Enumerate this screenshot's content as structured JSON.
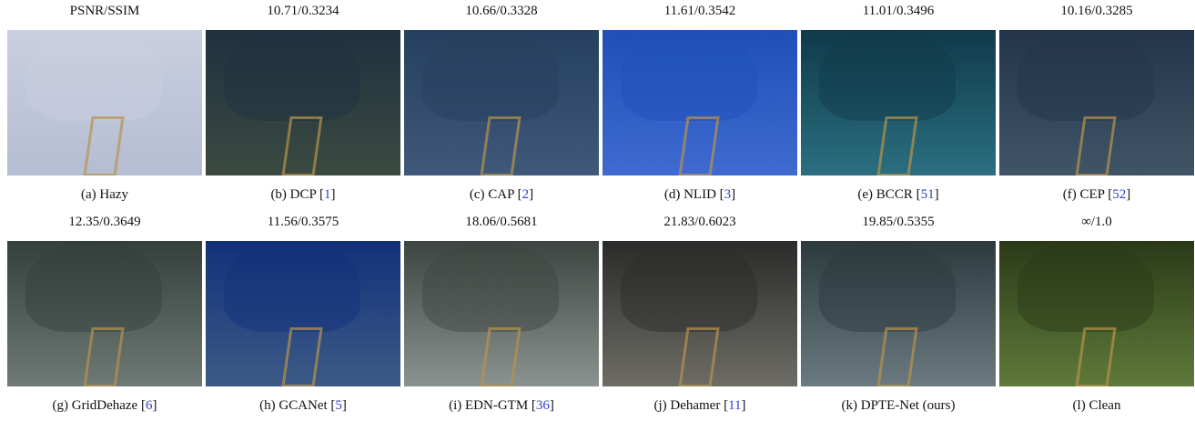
{
  "panels": [
    {
      "metric": "PSNR/SSIM",
      "caption": {
        "text": "(a) Hazy"
      }
    },
    {
      "metric": "10.71/0.3234",
      "caption": {
        "text": "(b) DCP [",
        "cite": "1",
        "end": "]"
      }
    },
    {
      "metric": "10.66/0.3328",
      "caption": {
        "text": "(c) CAP [",
        "cite": "2",
        "end": "]"
      }
    },
    {
      "metric": "11.61/0.3542",
      "caption": {
        "text": "(d) NLID [",
        "cite": "3",
        "end": "]"
      }
    },
    {
      "metric": "11.01/0.3496",
      "caption": {
        "text": "(e) BCCR [",
        "cite": "51",
        "end": "]"
      }
    },
    {
      "metric": "10.16/0.3285",
      "caption": {
        "text": "(f) CEP [",
        "cite": "52",
        "end": "]"
      }
    },
    {
      "metric": "12.35/0.3649",
      "caption": {
        "text": "(g) GridDehaze [",
        "cite": "6",
        "end": "]"
      }
    },
    {
      "metric": "11.56/0.3575",
      "caption": {
        "text": "(h) GCANet [",
        "cite": "5",
        "end": "]"
      }
    },
    {
      "metric": "18.06/0.5681",
      "caption": {
        "text": "(i) EDN-GTM [",
        "cite": "36",
        "end": "]"
      }
    },
    {
      "metric": "21.83/0.6023",
      "caption": {
        "text": "(j) Dehamer [",
        "cite": "11",
        "end": "]"
      }
    },
    {
      "metric": "19.85/0.5355",
      "caption": {
        "text": "(k) DPTE-Net (ours)"
      }
    },
    {
      "metric": "∞/1.0",
      "caption": {
        "text": "(l) Clean"
      }
    }
  ]
}
